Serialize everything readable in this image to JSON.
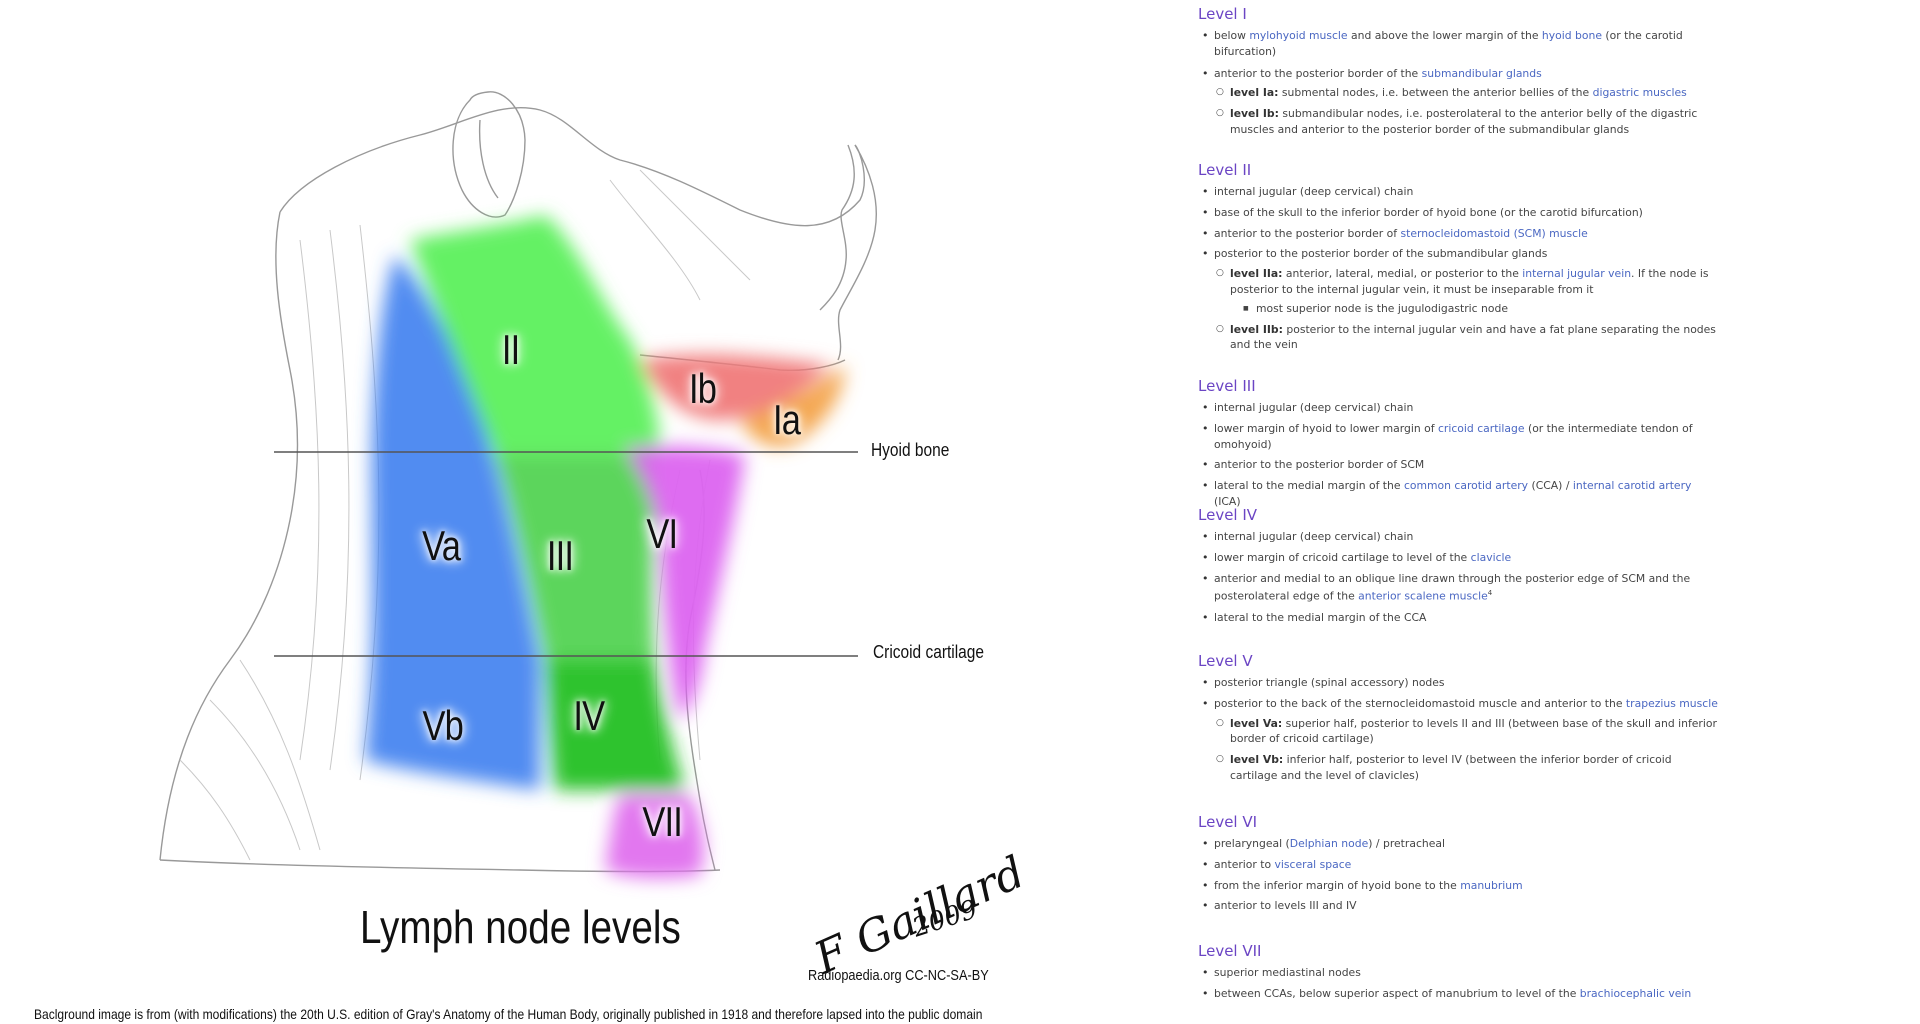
{
  "figure": {
    "zones": {
      "II": "II",
      "Ib": "Ib",
      "Ia": "Ia",
      "Va": "Va",
      "III": "III",
      "VI": "VI",
      "Vb": "Vb",
      "IV": "IV",
      "VII": "VII"
    },
    "lines": {
      "hyoid": "Hyoid bone",
      "cricoid": "Cricoid cartilage"
    },
    "title": "Lymph node levels",
    "signature": "F Gaillard",
    "signature_year": "2009",
    "credit": "Radiopaedia.org CC-NC-SA-BY",
    "caption": "Baclground image is from (with modifications) the 20th U.S. edition of Gray's Anatomy of the Human Body, originally published in 1918 and therefore lapsed into the public domain",
    "colors": {
      "green": "#55ee55",
      "blue": "#4488ee",
      "red": "#ee7777",
      "orange": "#f0a040",
      "magenta": "#dd66ee",
      "dark_green": "#33cc33"
    }
  },
  "levels": {
    "l1": {
      "heading": "Level I",
      "items": [
        {
          "a": "below ",
          "link1": "mylohyoid muscle",
          "b": " and above the lower margin of the ",
          "link2": "hyoid bone",
          "c": " (or the carotid bifurcation)"
        },
        {
          "a": "anterior to the posterior border of the ",
          "link1": "submandibular glands"
        }
      ],
      "sub": [
        {
          "bold": "level Ia:",
          "a": " submental nodes, i.e. between the anterior bellies of the ",
          "link1": "digastric muscles"
        },
        {
          "bold": "level Ib:",
          "a": " submandibular nodes, i.e. posterolateral to the anterior belly of the digastric muscles and anterior to the posterior border of the submandibular glands"
        }
      ]
    },
    "l2": {
      "heading": "Level II",
      "items": [
        "internal jugular (deep cervical) chain",
        "base of the skull to the inferior border of hyoid bone (or the carotid bifurcation)"
      ],
      "item3": {
        "a": "anterior to the posterior border of ",
        "link1": "sternocleidomastoid (SCM) muscle"
      },
      "item4": "posterior to the posterior border of the submandibular glands",
      "subA": {
        "bold": "level IIa:",
        "a": " anterior, lateral, medial, or posterior to the ",
        "link1": "internal jugular vein",
        "b": ". If the node is posterior to the internal jugular vein, it must be inseparable from it"
      },
      "subA_sub": "most superior node is the jugulodigastric node",
      "subB": {
        "bold": "level IIb:",
        "a": " posterior to the internal jugular vein and have a fat plane separating the nodes and the vein"
      }
    },
    "l3": {
      "heading": "Level III",
      "item1": "internal jugular (deep cervical) chain",
      "item2": {
        "a": "lower margin of hyoid to lower margin of ",
        "link1": "cricoid cartilage",
        "b": " (or the intermediate tendon of omohyoid)"
      },
      "item3": "anterior to the posterior border of SCM",
      "item4": {
        "a": "lateral to the medial margin of the ",
        "link1": "common carotid artery",
        "b": " (CCA) / ",
        "link2": "internal carotid artery",
        "c": " (ICA)"
      }
    },
    "l4": {
      "heading": "Level IV",
      "item1": "internal jugular (deep cervical) chain",
      "item2": {
        "a": "lower margin of cricoid cartilage to level of the ",
        "link1": "clavicle"
      },
      "item3": {
        "a": "anterior and medial to an oblique line drawn through the posterior edge of SCM and the posterolateral edge of the ",
        "link1": "anterior scalene muscle",
        "sup": "4"
      },
      "item4": "lateral to the medial margin of the CCA"
    },
    "l5": {
      "heading": "Level V",
      "item1": "posterior triangle (spinal accessory) nodes",
      "item2": {
        "a": "posterior to the back of the sternocleidomastoid muscle and anterior to the ",
        "link1": "trapezius muscle"
      },
      "subA": {
        "bold": "level Va:",
        "a": " superior half, posterior to levels II and III (between base of the skull and inferior border of cricoid cartilage)"
      },
      "subB": {
        "bold": "level Vb:",
        "a": " inferior half, posterior to level IV (between the inferior border of cricoid cartilage and the level of clavicles)"
      }
    },
    "l6": {
      "heading": "Level VI",
      "item1": {
        "a": "prelaryngeal (",
        "link1": "Delphian node",
        "b": ") / pretracheal"
      },
      "item2": {
        "a": "anterior to ",
        "link1": "visceral space"
      },
      "item3": {
        "a": "from the inferior margin of hyoid bone to the ",
        "link1": "manubrium"
      },
      "item4": "anterior to levels III and IV"
    },
    "l7": {
      "heading": "Level VII",
      "item1": "superior mediastinal nodes",
      "item2": {
        "a": "between CCAs, below superior aspect of manubrium to level of the ",
        "link1": "brachiocephalic vein"
      }
    }
  }
}
